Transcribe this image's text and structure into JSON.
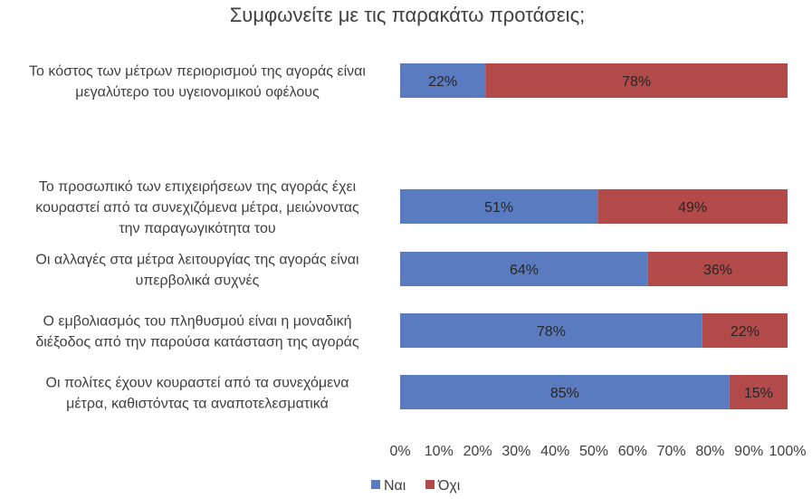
{
  "chart_data": {
    "type": "bar",
    "orientation": "horizontal",
    "stacked": true,
    "title": "Συμφωνείτε με τις παρακάτω προτάσεις;",
    "xlabel": "",
    "ylabel": "",
    "xlim": [
      0,
      100
    ],
    "x_ticks": [
      "0%",
      "10%",
      "20%",
      "30%",
      "40%",
      "50%",
      "60%",
      "70%",
      "80%",
      "90%",
      "100%"
    ],
    "grid": false,
    "legend_position": "bottom",
    "categories": [
      [
        "Το κόστος των μέτρων περιορισμού της αγοράς είναι",
        "μεγαλύτερο του υγειονομικού οφέλους"
      ],
      [
        "Το προσωπικό των επιχειρήσεων της αγοράς έχει",
        "κουραστεί από τα συνεχιζόμενα μέτρα, μειώνοντας",
        "την παραγωγικότητα του"
      ],
      [
        "Οι αλλαγές στα μέτρα λειτουργίας της αγοράς είναι",
        "υπερβολικά συχνές"
      ],
      [
        "Ο εμβολιασμός του πληθυσμού είναι η μοναδική",
        "διέξοδος από την παρούσα κατάσταση της αγοράς"
      ],
      [
        "Οι πολίτες έχουν κουραστεί από τα συνεχόμενα",
        "μέτρα, καθιστόντας τα αναποτελεσματικά"
      ]
    ],
    "series": [
      {
        "name": "Ναι",
        "color": "#5b7bc1",
        "values": [
          22,
          51,
          64,
          78,
          85
        ],
        "labels": [
          "22%",
          "51%",
          "64%",
          "78%",
          "85%"
        ]
      },
      {
        "name": "Όχι",
        "color": "#b24a4a",
        "values": [
          78,
          49,
          36,
          22,
          15
        ],
        "labels": [
          "78%",
          "49%",
          "36%",
          "22%",
          "15%"
        ]
      }
    ]
  }
}
